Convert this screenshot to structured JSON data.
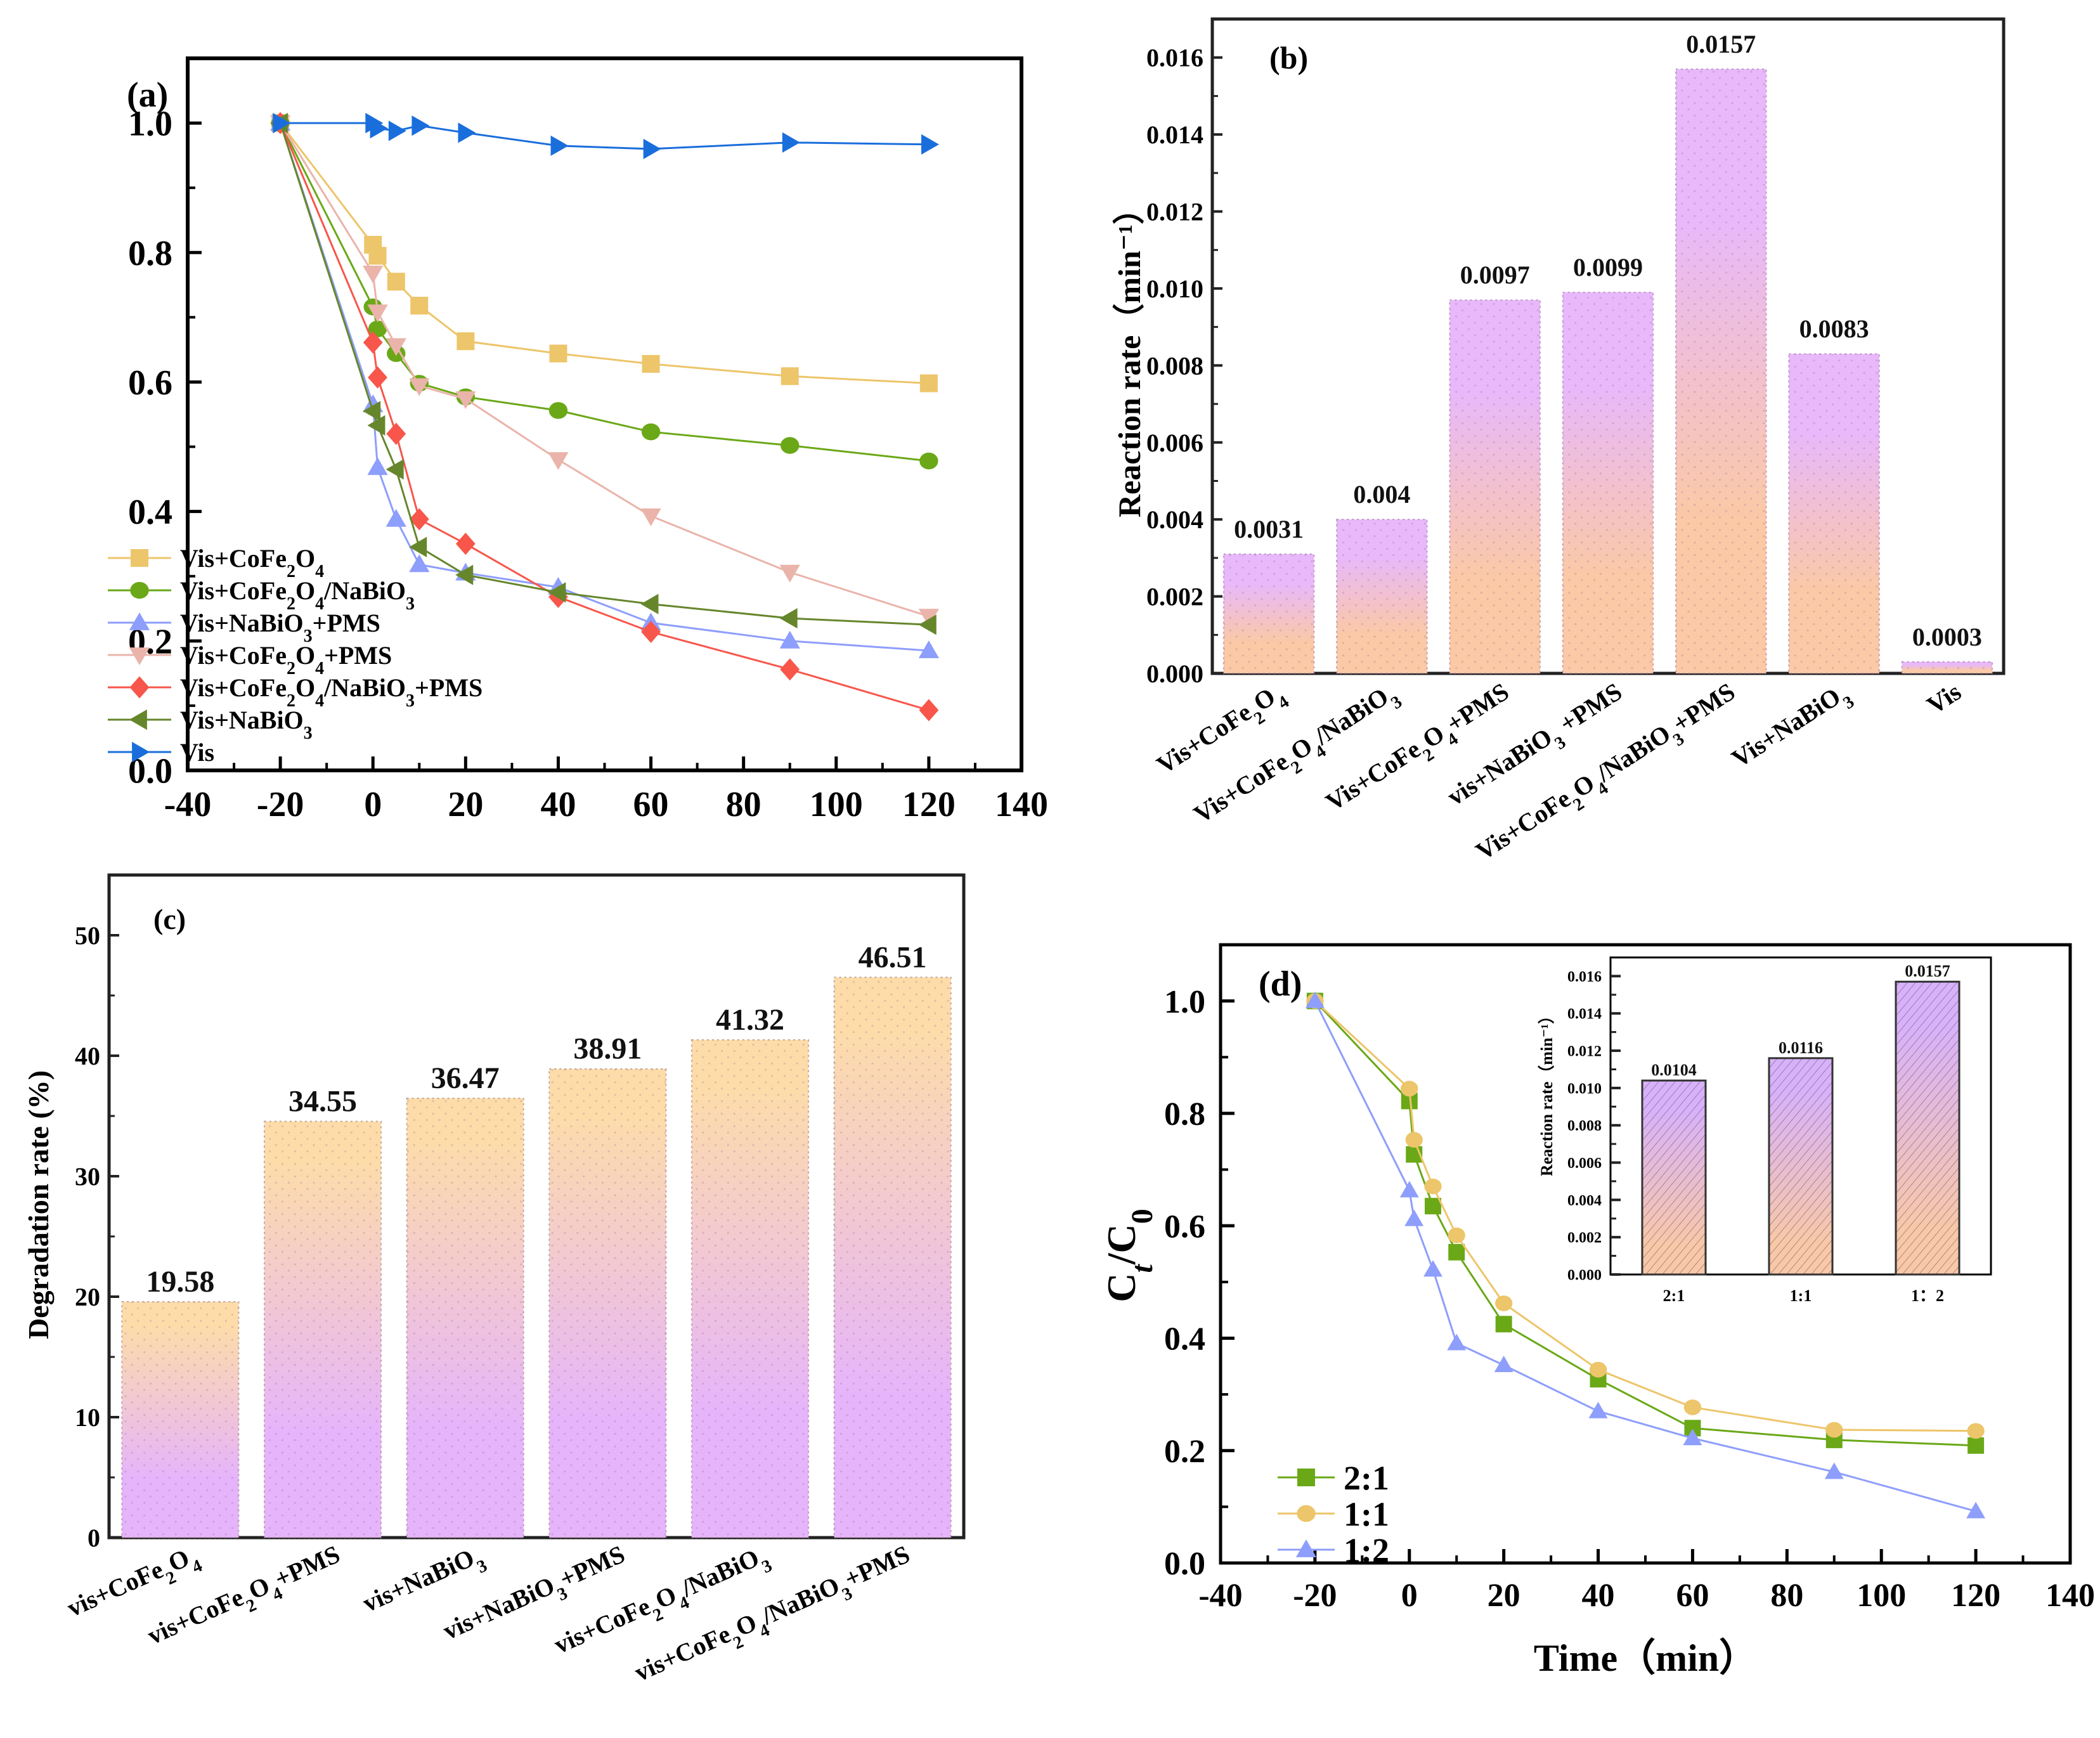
{
  "chart_data": [
    {
      "id": "a",
      "type": "line",
      "panel_label": "(a)",
      "title": "",
      "xlabel": "",
      "ylabel": "",
      "xlim": [
        -40,
        140
      ],
      "ylim": [
        0,
        1.1
      ],
      "xticks": [
        -40,
        -20,
        0,
        20,
        40,
        60,
        80,
        100,
        120,
        140
      ],
      "yticks": [
        0.0,
        0.2,
        0.4,
        0.6,
        0.8,
        1.0
      ],
      "ytick_labels": [
        "0.0",
        "0.2",
        "0.4",
        "0.6",
        "0.8",
        "1.0"
      ],
      "legend_position": "bottom-left",
      "x": [
        -20,
        0,
        1,
        5,
        10,
        20,
        40,
        60,
        90,
        120
      ],
      "series": [
        {
          "name": "Vis+CoFe2O4",
          "label_parts": [
            [
              "Vis+CoFe",
              ""
            ],
            [
              "2",
              "sub"
            ],
            [
              "O",
              ""
            ],
            [
              "4",
              "sub"
            ]
          ],
          "color": "#EDC56A",
          "marker": "square",
          "values": [
            1.0,
            0.812,
            0.795,
            0.755,
            0.718,
            0.663,
            0.644,
            0.628,
            0.609,
            0.598
          ]
        },
        {
          "name": "Vis+CoFe2O4/NaBiO3",
          "label_parts": [
            [
              "Vis+CoFe",
              ""
            ],
            [
              "2",
              "sub"
            ],
            [
              "O",
              ""
            ],
            [
              "4",
              "sub"
            ],
            [
              "/NaBiO",
              ""
            ],
            [
              "3",
              "sub"
            ]
          ],
          "color": "#6AA817",
          "marker": "circle",
          "values": [
            1.0,
            0.716,
            0.682,
            0.644,
            0.598,
            0.577,
            0.556,
            0.523,
            0.502,
            0.478
          ]
        },
        {
          "name": "Vis+NaBiO3+PMS",
          "label_parts": [
            [
              "Vis+NaBiO",
              ""
            ],
            [
              "3",
              "sub"
            ],
            [
              "+PMS",
              ""
            ]
          ],
          "color": "#8E9EFC",
          "marker": "triangle-up",
          "values": [
            1.0,
            0.565,
            0.468,
            0.388,
            0.318,
            0.305,
            0.283,
            0.228,
            0.2,
            0.185
          ]
        },
        {
          "name": "Vis+CoFe2O4+PMS",
          "label_parts": [
            [
              "Vis+CoFe",
              ""
            ],
            [
              "2",
              "sub"
            ],
            [
              "O",
              ""
            ],
            [
              "4",
              "sub"
            ],
            [
              "+PMS",
              ""
            ]
          ],
          "color": "#EAB4AA",
          "marker": "triangle-down",
          "values": [
            1.0,
            0.768,
            0.708,
            0.656,
            0.594,
            0.574,
            0.48,
            0.393,
            0.306,
            0.238
          ]
        },
        {
          "name": "Vis+CoFe2O4/NaBiO3+PMS",
          "label_parts": [
            [
              "Vis+CoFe",
              ""
            ],
            [
              "2",
              "sub"
            ],
            [
              "O",
              ""
            ],
            [
              "4",
              "sub"
            ],
            [
              "/NaBiO",
              ""
            ],
            [
              "3",
              "sub"
            ],
            [
              "+PMS",
              ""
            ]
          ],
          "color": "#F8564B",
          "marker": "diamond",
          "values": [
            1.0,
            0.661,
            0.607,
            0.52,
            0.388,
            0.35,
            0.268,
            0.214,
            0.156,
            0.093
          ]
        },
        {
          "name": "Vis+NaBiO3",
          "label_parts": [
            [
              "Vis+NaBiO",
              ""
            ],
            [
              "3",
              "sub"
            ]
          ],
          "color": "#66862C",
          "marker": "triangle-left",
          "values": [
            1.0,
            0.555,
            0.533,
            0.465,
            0.345,
            0.302,
            0.275,
            0.257,
            0.235,
            0.225
          ]
        },
        {
          "name": "Vis",
          "label_parts": [
            [
              "Vis",
              ""
            ]
          ],
          "color": "#1A6EDC",
          "marker": "triangle-right",
          "values": [
            1.0,
            1.0,
            0.992,
            0.988,
            0.996,
            0.985,
            0.965,
            0.96,
            0.97,
            0.967
          ]
        }
      ]
    },
    {
      "id": "b",
      "type": "bar",
      "panel_label": "(b)",
      "title": "",
      "xlabel": "",
      "ylabel": "Reaction rate（min⁻¹）",
      "ylim": [
        0,
        0.017
      ],
      "yticks": [
        0.0,
        0.002,
        0.004,
        0.006,
        0.008,
        0.01,
        0.012,
        0.014,
        0.016
      ],
      "ytick_labels": [
        "0.000",
        "0.002",
        "0.004",
        "0.006",
        "0.008",
        "0.010",
        "0.012",
        "0.014",
        "0.016"
      ],
      "categories": [
        "Vis+CoFe2O4",
        "Vis+CoFe2O4/NaBiO3",
        "Vis+CoFe2O4+PMS",
        "vis+NaBiO3 +PMS",
        "Vis+CoFe2O4/NaBiO3+PMS",
        "Vis+NaBiO3",
        "Vis"
      ],
      "category_parts": [
        [
          [
            "Vis+CoFe",
            ""
          ],
          [
            "2",
            "sub"
          ],
          [
            "O",
            ""
          ],
          [
            "4",
            "sub"
          ]
        ],
        [
          [
            "Vis+CoFe",
            ""
          ],
          [
            "2",
            "sub"
          ],
          [
            "O",
            ""
          ],
          [
            "4",
            "sub"
          ],
          [
            "/NaBiO",
            ""
          ],
          [
            "3",
            "sub"
          ]
        ],
        [
          [
            "Vis+CoFe",
            ""
          ],
          [
            "2",
            "sub"
          ],
          [
            "O",
            ""
          ],
          [
            "4",
            "sub"
          ],
          [
            "+PMS",
            ""
          ]
        ],
        [
          [
            "vis+NaBiO",
            ""
          ],
          [
            "3",
            "sub"
          ],
          [
            " +PMS",
            ""
          ]
        ],
        [
          [
            "Vis+CoFe",
            ""
          ],
          [
            "2",
            "sub"
          ],
          [
            "O",
            ""
          ],
          [
            "4",
            "sub"
          ],
          [
            "/NaBiO",
            ""
          ],
          [
            "3",
            "sub"
          ],
          [
            "+PMS",
            ""
          ]
        ],
        [
          [
            "Vis+NaBiO",
            ""
          ],
          [
            "3",
            "sub"
          ]
        ],
        [
          [
            "Vis",
            ""
          ]
        ]
      ],
      "values": [
        0.0031,
        0.004,
        0.0097,
        0.0099,
        0.0157,
        0.0083,
        0.0003
      ],
      "value_labels": [
        "0.0031",
        "0.004",
        "0.0097",
        "0.0099",
        "0.0157",
        "0.0083",
        "0.0003"
      ],
      "gradient": {
        "top": "#E8B8FA",
        "bottom": "#FBC9A5"
      }
    },
    {
      "id": "c",
      "type": "bar",
      "panel_label": "(c)",
      "title": "",
      "xlabel": "",
      "ylabel": "Degradation rate (%)",
      "ylim": [
        0,
        55
      ],
      "yticks": [
        0,
        10,
        20,
        30,
        40,
        50
      ],
      "ytick_labels": [
        "0",
        "10",
        "20",
        "30",
        "40",
        "50"
      ],
      "categories": [
        "vis+CoFe2O4",
        "vis+CoFe2O4+PMS",
        "vis+NaBiO3",
        "vis+NaBiO3+PMS",
        "vis+CoFe2O4/NaBiO3",
        "vis+CoFe2O4/NaBiO3+PMS"
      ],
      "category_parts": [
        [
          [
            "vis+CoFe",
            ""
          ],
          [
            "2",
            "sub"
          ],
          [
            "O",
            ""
          ],
          [
            "4",
            "sub"
          ]
        ],
        [
          [
            "vis+CoFe",
            ""
          ],
          [
            "2",
            "sub"
          ],
          [
            "O",
            ""
          ],
          [
            "4",
            "sub"
          ],
          [
            "+PMS",
            ""
          ]
        ],
        [
          [
            "vis+NaBiO",
            ""
          ],
          [
            "3",
            "sub"
          ]
        ],
        [
          [
            "vis+NaBiO",
            ""
          ],
          [
            "3",
            "sub"
          ],
          [
            "+PMS",
            ""
          ]
        ],
        [
          [
            "vis+CoFe",
            ""
          ],
          [
            "2",
            "sub"
          ],
          [
            "O",
            ""
          ],
          [
            "4",
            "sub"
          ],
          [
            "/NaBiO",
            ""
          ],
          [
            "3",
            "sub"
          ]
        ],
        [
          [
            "vis+CoFe",
            ""
          ],
          [
            "2",
            "sub"
          ],
          [
            "O",
            ""
          ],
          [
            "4",
            "sub"
          ],
          [
            "/NaBiO",
            ""
          ],
          [
            "3",
            "sub"
          ],
          [
            "+PMS",
            ""
          ]
        ]
      ],
      "values": [
        19.58,
        34.55,
        36.47,
        38.91,
        41.32,
        46.51
      ],
      "value_labels": [
        "19.58",
        "34.55",
        "36.47",
        "38.91",
        "41.32",
        "46.51"
      ],
      "gradient": {
        "top": "#FDDCAA",
        "bottom": "#E6B4FB"
      }
    },
    {
      "id": "d",
      "type": "line",
      "panel_label": "(d)",
      "title": "",
      "xlabel": "Time（min）",
      "ylabel": "Ct/C0",
      "xlim": [
        -40,
        140
      ],
      "ylim": [
        0,
        1.1
      ],
      "xticks": [
        -40,
        -20,
        0,
        20,
        40,
        60,
        80,
        100,
        120,
        140
      ],
      "yticks": [
        0.0,
        0.2,
        0.4,
        0.6,
        0.8,
        1.0
      ],
      "ytick_labels": [
        "0.0",
        "0.2",
        "0.4",
        "0.6",
        "0.8",
        "1.0"
      ],
      "legend_position": "bottom-left",
      "x": [
        -20,
        0,
        1,
        5,
        10,
        20,
        40,
        60,
        90,
        120
      ],
      "series": [
        {
          "name": "2:1",
          "color": "#6AA817",
          "marker": "square",
          "values": [
            1.0,
            0.822,
            0.727,
            0.635,
            0.553,
            0.425,
            0.327,
            0.24,
            0.219,
            0.209
          ]
        },
        {
          "name": "1:1",
          "color": "#EDC56A",
          "marker": "circle",
          "values": [
            1.0,
            0.844,
            0.753,
            0.67,
            0.583,
            0.462,
            0.344,
            0.277,
            0.237,
            0.235
          ]
        },
        {
          "name": "1:2",
          "color": "#8E9EFC",
          "marker": "triangle-up",
          "values": [
            1.0,
            0.663,
            0.612,
            0.522,
            0.391,
            0.352,
            0.27,
            0.222,
            0.162,
            0.092
          ]
        }
      ],
      "inset": {
        "type": "bar",
        "ylabel": "Reaction rate（min⁻¹）",
        "ylim": [
          0,
          0.017
        ],
        "yticks": [
          0.0,
          0.002,
          0.004,
          0.006,
          0.008,
          0.01,
          0.012,
          0.014,
          0.016
        ],
        "ytick_labels": [
          "0.000",
          "0.002",
          "0.004",
          "0.006",
          "0.008",
          "0.010",
          "0.012",
          "0.014",
          "0.016"
        ],
        "categories": [
          "2:1",
          "1:1",
          "1：2"
        ],
        "values": [
          0.0104,
          0.0116,
          0.0157
        ],
        "value_labels": [
          "0.0104",
          "0.0116",
          "0.0157"
        ],
        "gradient": {
          "top": "#D7B2FA",
          "bottom": "#F8C8A8"
        }
      }
    }
  ]
}
